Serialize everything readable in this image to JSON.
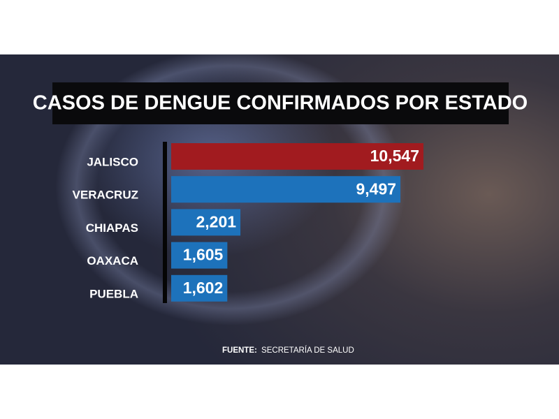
{
  "chart_data": {
    "type": "bar",
    "orientation": "horizontal",
    "title": "CASOS DE DENGUE CONFIRMADOS POR ESTADO",
    "categories": [
      "JALISCO",
      "VERACRUZ",
      "CHIAPAS",
      "OAXACA",
      "PUEBLA"
    ],
    "values": [
      10547,
      9497,
      2201,
      1605,
      1602
    ],
    "value_labels": [
      "10,547",
      "9,497",
      "2,201",
      "1,605",
      "1,602"
    ],
    "colors": [
      "#a11b1f",
      "#1d72bb",
      "#1d72bb",
      "#1d72bb",
      "#1d72bb"
    ],
    "source_label": "FUENTE:",
    "source": "SECRETARÍA DE SALUD"
  }
}
